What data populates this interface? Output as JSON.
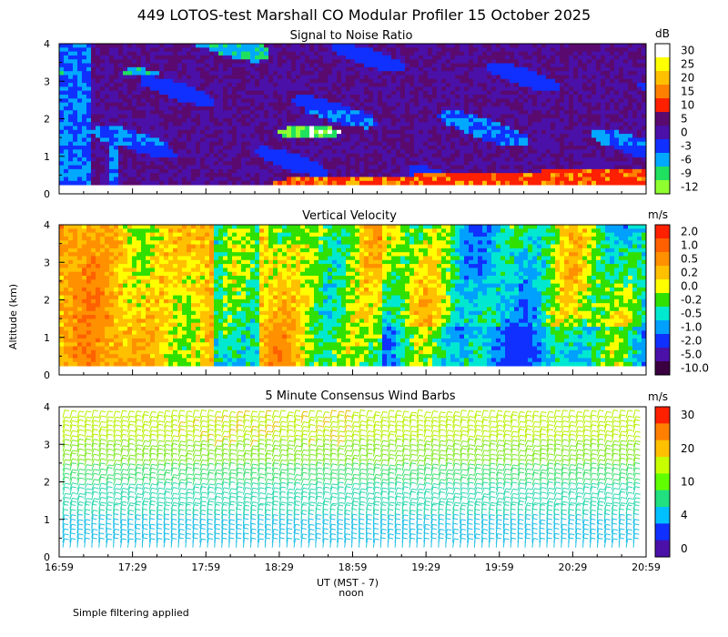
{
  "title": "449 LOTOS-test Marshall CO Modular Profiler 15 October 2025",
  "y_axis_label": "Altitude (km)",
  "x_axis": {
    "label": "UT  (MST - 7)",
    "sublabel": "noon",
    "ticks": [
      "16:59",
      "17:29",
      "17:59",
      "18:29",
      "18:59",
      "19:29",
      "19:59",
      "20:29",
      "20:59"
    ]
  },
  "footer_note": "Simple filtering applied",
  "chart_data": [
    {
      "type": "heatmap",
      "title": "Signal to Noise Ratio",
      "ylabel": "Altitude (km)",
      "yticks": [
        "0",
        "1",
        "2",
        "3",
        "4"
      ],
      "ylim": [
        0,
        4
      ],
      "xlim": [
        "16:59",
        "20:59"
      ],
      "colorbar_unit": "dB",
      "colorbar": [
        {
          "label": "30",
          "color": "#ffffff"
        },
        {
          "label": "25",
          "color": "#ffff00"
        },
        {
          "label": "20",
          "color": "#ffc000"
        },
        {
          "label": "15",
          "color": "#ff8000"
        },
        {
          "label": "10",
          "color": "#ff2000"
        },
        {
          "label": "5",
          "color": "#5a0a6e"
        },
        {
          "label": "0",
          "color": "#4a10a8"
        },
        {
          "label": "-3",
          "color": "#1030ff"
        },
        {
          "label": "-6",
          "color": "#00a8ff"
        },
        {
          "label": "-9",
          "color": "#20e060"
        },
        {
          "label": "-12",
          "color": "#90ff30"
        }
      ]
    },
    {
      "type": "heatmap",
      "title": "Vertical Velocity",
      "ylabel": "Altitude (km)",
      "yticks": [
        "0",
        "1",
        "2",
        "3",
        "4"
      ],
      "ylim": [
        0,
        4
      ],
      "xlim": [
        "16:59",
        "20:59"
      ],
      "colorbar_unit": "m/s",
      "colorbar": [
        {
          "label": "2.0",
          "color": "#ff2000"
        },
        {
          "label": "1.0",
          "color": "#ff6000"
        },
        {
          "label": "0.5",
          "color": "#ff9000"
        },
        {
          "label": "0.2",
          "color": "#ffc000"
        },
        {
          "label": "0.0",
          "color": "#ffff00"
        },
        {
          "label": "-0.2",
          "color": "#30e000"
        },
        {
          "label": "-0.5",
          "color": "#00e8d0"
        },
        {
          "label": "-1.0",
          "color": "#00a0ff"
        },
        {
          "label": "-2.0",
          "color": "#1030ff"
        },
        {
          "label": "-5.0",
          "color": "#4a10a8"
        },
        {
          "label": "-10.0",
          "color": "#3a0040"
        }
      ]
    },
    {
      "type": "wind_barbs",
      "title": "5 Minute Consensus Wind Barbs",
      "ylabel": "Altitude (km)",
      "yticks": [
        "0",
        "1",
        "2",
        "3",
        "4"
      ],
      "ylim": [
        0,
        4
      ],
      "xlim": [
        "16:59",
        "20:59"
      ],
      "colorbar_unit": "m/s",
      "colorbar": [
        {
          "label": "30",
          "color": "#ff2000"
        },
        {
          "label": "",
          "color": "#ff8000"
        },
        {
          "label": "20",
          "color": "#ffc000"
        },
        {
          "label": "",
          "color": "#c8ff00"
        },
        {
          "label": "10",
          "color": "#60ff00"
        },
        {
          "label": "",
          "color": "#20e080"
        },
        {
          "label": "4",
          "color": "#00c0ff"
        },
        {
          "label": "",
          "color": "#1030ff"
        },
        {
          "label": "0",
          "color": "#4a10a8"
        }
      ]
    }
  ]
}
